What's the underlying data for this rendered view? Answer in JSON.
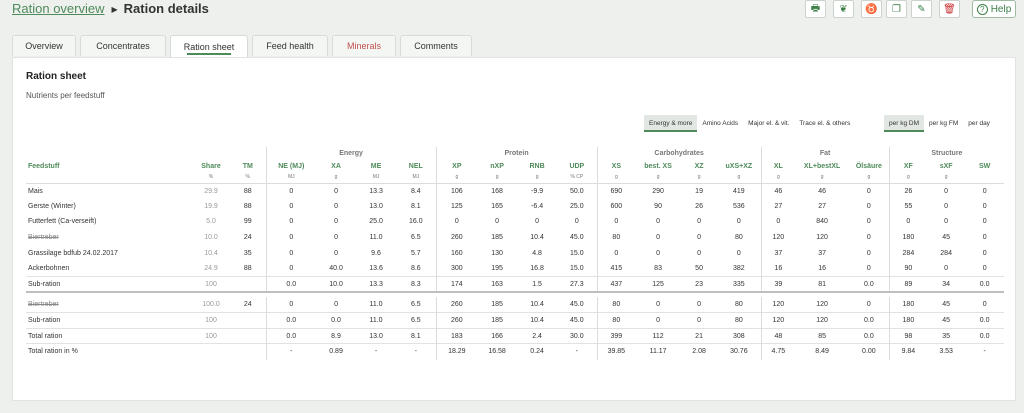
{
  "breadcrumb": {
    "parent": "Ration overview",
    "current": "Ration details"
  },
  "toolbar": {
    "buttons": [
      {
        "name": "print-button",
        "icon": "print-icon",
        "glyph": "🖶"
      },
      {
        "name": "tool-2-button",
        "icon": "plant-icon",
        "glyph": "❦"
      },
      {
        "name": "tool-3-button",
        "icon": "cow-icon",
        "glyph": "♉"
      },
      {
        "name": "copy-button",
        "icon": "copy-icon",
        "glyph": "❐"
      },
      {
        "name": "edit-button",
        "icon": "pencil-icon",
        "glyph": "✎"
      },
      {
        "name": "delete-button",
        "icon": "trash-icon",
        "glyph": "🗑"
      }
    ],
    "help_label": "Help"
  },
  "tabs": [
    {
      "label": "Overview"
    },
    {
      "label": "Concentrates"
    },
    {
      "label": "Ration sheet"
    },
    {
      "label": "Feed health"
    },
    {
      "label": "Minerals"
    },
    {
      "label": "Comments"
    }
  ],
  "panel": {
    "title": "Ration sheet",
    "subtitle": "Nutrients per feedstuff"
  },
  "nutrient_toggle": [
    "Energy & more",
    "Amino Acids",
    "Major el. & vit.",
    "Trace el. & others"
  ],
  "basis_toggle": [
    "per kg DM",
    "per kg FM",
    "per day"
  ],
  "table": {
    "groups": {
      "energy": "Energy",
      "protein": "Protein",
      "carbohydrates": "Carbohydrates",
      "fat": "Fat",
      "structure": "Structure"
    },
    "columns": [
      "Feedstuff",
      "Share",
      "TM",
      "NE (MJ)",
      "XA",
      "ME",
      "NEL",
      "XP",
      "nXP",
      "RNB",
      "UDP",
      "XS",
      "best. XS",
      "XZ",
      "uXS+XZ",
      "XL",
      "XL+bestXL",
      "Ölsäure",
      "XF",
      "sXF",
      "SW"
    ],
    "units": [
      "",
      "%",
      "%",
      "MJ",
      "g",
      "MJ",
      "MJ",
      "g",
      "g",
      "g",
      "% CP",
      "g",
      "g",
      "g",
      "g",
      "g",
      "g",
      "g",
      "g",
      "g",
      ""
    ],
    "rows": [
      [
        "Mais",
        "29.9",
        "88",
        "0",
        "0",
        "13.3",
        "8.4",
        "106",
        "168",
        "-9.9",
        "50.0",
        "690",
        "290",
        "19",
        "419",
        "46",
        "46",
        "0",
        "26",
        "0",
        "0"
      ],
      [
        "Gerste (Winter)",
        "19.9",
        "88",
        "0",
        "0",
        "13.0",
        "8.1",
        "125",
        "165",
        "-6.4",
        "25.0",
        "600",
        "90",
        "26",
        "536",
        "27",
        "27",
        "0",
        "55",
        "0",
        "0"
      ],
      [
        "Futterfett (Ca-verseift)",
        "5.0",
        "99",
        "0",
        "0",
        "25.0",
        "16.0",
        "0",
        "0",
        "0",
        "0",
        "0",
        "0",
        "0",
        "0",
        "0",
        "840",
        "0",
        "0",
        "0",
        "0"
      ],
      [
        "Biertreber",
        "10.0",
        "24",
        "0",
        "0",
        "11.0",
        "6.5",
        "260",
        "185",
        "10.4",
        "45.0",
        "80",
        "0",
        "0",
        "80",
        "120",
        "120",
        "0",
        "180",
        "45",
        "0"
      ],
      [
        "Grassilage bdfub 24.02.2017",
        "10.4",
        "35",
        "0",
        "0",
        "9.6",
        "5.7",
        "160",
        "130",
        "4.8",
        "15.0",
        "0",
        "0",
        "0",
        "0",
        "37",
        "37",
        "0",
        "284",
        "284",
        "0"
      ],
      [
        "Ackerbohnen",
        "24.9",
        "88",
        "0",
        "40.0",
        "13.6",
        "8.6",
        "300",
        "195",
        "16.8",
        "15.0",
        "415",
        "83",
        "50",
        "382",
        "16",
        "16",
        "0",
        "90",
        "0",
        "0"
      ]
    ],
    "subration_row": [
      "Sub-ration",
      "100",
      "",
      "0.0",
      "10.0",
      "13.3",
      "8.3",
      "174",
      "163",
      "1.5",
      "27.3",
      "437",
      "125",
      "23",
      "335",
      "39",
      "81",
      "0.0",
      "89",
      "34",
      "0.0"
    ],
    "lower_rows": [
      [
        "Biertreber",
        "100.0",
        "24",
        "0",
        "0",
        "11.0",
        "6.5",
        "260",
        "185",
        "10.4",
        "45.0",
        "80",
        "0",
        "0",
        "80",
        "120",
        "120",
        "0",
        "180",
        "45",
        "0"
      ],
      [
        "Sub-ration",
        "100",
        "",
        "0.0",
        "0.0",
        "11.0",
        "6.5",
        "260",
        "185",
        "10.4",
        "45.0",
        "80",
        "0",
        "0",
        "80",
        "120",
        "120",
        "0.0",
        "180",
        "45",
        "0.0"
      ],
      [
        "Total ration",
        "100",
        "",
        "0.0",
        "8.9",
        "13.0",
        "8.1",
        "183",
        "166",
        "2.4",
        "30.0",
        "399",
        "112",
        "21",
        "308",
        "48",
        "85",
        "0.0",
        "98",
        "35",
        "0.0"
      ],
      [
        "Total ration in %",
        "",
        "",
        "-",
        "0.89",
        "-",
        "-",
        "18.29",
        "16.58",
        "0.24",
        "-",
        "39.85",
        "11.17",
        "2.08",
        "30.76",
        "4.75",
        "8.49",
        "0.00",
        "9.84",
        "3.53",
        "-"
      ]
    ]
  }
}
